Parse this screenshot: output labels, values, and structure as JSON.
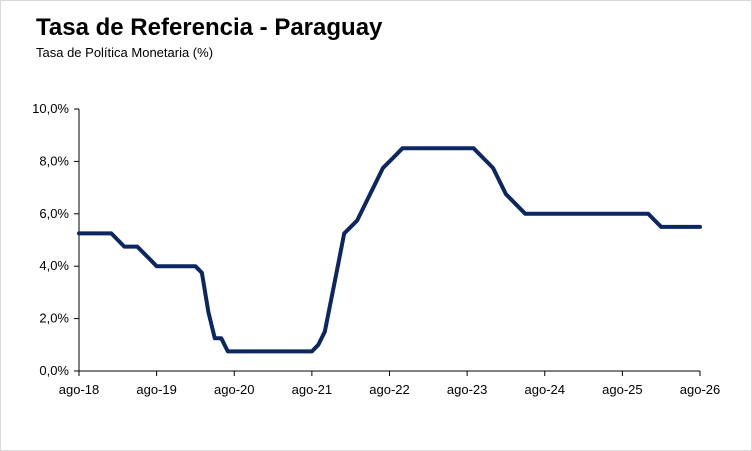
{
  "chart_data": {
    "type": "line",
    "title": "Tasa de Referencia - Paraguay",
    "subtitle": "Tasa de Política Monetaria (%)",
    "xlabel": "",
    "ylabel": "",
    "ylim": [
      0,
      10
    ],
    "yticks": [
      "0,0%",
      "2,0%",
      "4,0%",
      "6,0%",
      "8,0%",
      "10,0%"
    ],
    "xticks": [
      "ago-18",
      "ago-19",
      "ago-20",
      "ago-21",
      "ago-22",
      "ago-23",
      "ago-24",
      "ago-25",
      "ago-26"
    ],
    "xrange": [
      "2018-08",
      "2026-08"
    ],
    "grid": false,
    "line_color": "#0b2660",
    "series": [
      {
        "name": "",
        "points": [
          [
            "2018-08",
            5.25
          ],
          [
            "2019-01",
            5.25
          ],
          [
            "2019-02",
            5.0
          ],
          [
            "2019-03",
            4.75
          ],
          [
            "2019-05",
            4.75
          ],
          [
            "2019-06",
            4.5
          ],
          [
            "2019-07",
            4.25
          ],
          [
            "2019-08",
            4.0
          ],
          [
            "2020-02",
            4.0
          ],
          [
            "2020-03",
            3.75
          ],
          [
            "2020-04",
            2.25
          ],
          [
            "2020-05",
            1.25
          ],
          [
            "2020-06",
            1.25
          ],
          [
            "2020-07",
            0.75
          ],
          [
            "2021-08",
            0.75
          ],
          [
            "2021-09",
            1.0
          ],
          [
            "2021-10",
            1.5
          ],
          [
            "2021-11",
            2.75
          ],
          [
            "2021-12",
            4.0
          ],
          [
            "2022-01",
            5.25
          ],
          [
            "2022-03",
            5.75
          ],
          [
            "2022-05",
            6.75
          ],
          [
            "2022-07",
            7.75
          ],
          [
            "2022-09",
            8.25
          ],
          [
            "2022-10",
            8.5
          ],
          [
            "2023-09",
            8.5
          ],
          [
            "2023-10",
            8.25
          ],
          [
            "2023-12",
            7.75
          ],
          [
            "2024-02",
            6.75
          ],
          [
            "2024-04",
            6.25
          ],
          [
            "2024-05",
            6.0
          ],
          [
            "2025-12",
            6.0
          ],
          [
            "2026-01",
            5.75
          ],
          [
            "2026-02",
            5.5
          ],
          [
            "2026-08",
            5.5
          ]
        ]
      }
    ]
  }
}
